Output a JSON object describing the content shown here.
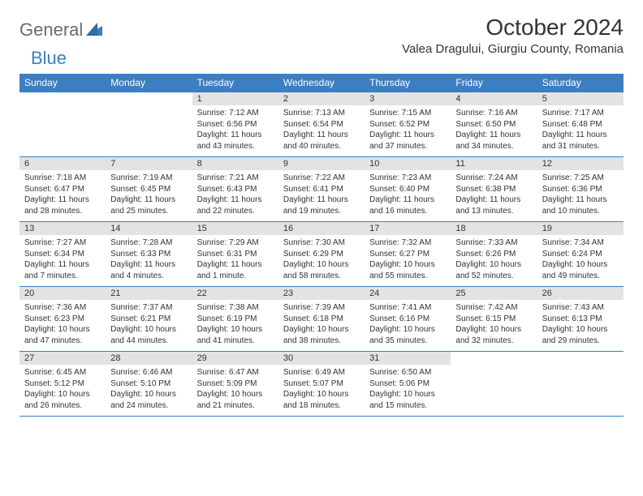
{
  "brand": {
    "part1": "General",
    "part2": "Blue"
  },
  "title": "October 2024",
  "location": "Valea Dragului, Giurgiu County, Romania",
  "colors": {
    "headerBlue": "#3b7ec1",
    "dayBarGrey": "#e3e3e3",
    "textDark": "#333333",
    "textGrey": "#6b6b6b",
    "white": "#ffffff"
  },
  "dayNames": [
    "Sunday",
    "Monday",
    "Tuesday",
    "Wednesday",
    "Thursday",
    "Friday",
    "Saturday"
  ],
  "weeks": [
    [
      null,
      null,
      {
        "n": "1",
        "sr": "7:12 AM",
        "ss": "6:56 PM",
        "dl": "11 hours and 43 minutes."
      },
      {
        "n": "2",
        "sr": "7:13 AM",
        "ss": "6:54 PM",
        "dl": "11 hours and 40 minutes."
      },
      {
        "n": "3",
        "sr": "7:15 AM",
        "ss": "6:52 PM",
        "dl": "11 hours and 37 minutes."
      },
      {
        "n": "4",
        "sr": "7:16 AM",
        "ss": "6:50 PM",
        "dl": "11 hours and 34 minutes."
      },
      {
        "n": "5",
        "sr": "7:17 AM",
        "ss": "6:48 PM",
        "dl": "11 hours and 31 minutes."
      }
    ],
    [
      {
        "n": "6",
        "sr": "7:18 AM",
        "ss": "6:47 PM",
        "dl": "11 hours and 28 minutes."
      },
      {
        "n": "7",
        "sr": "7:19 AM",
        "ss": "6:45 PM",
        "dl": "11 hours and 25 minutes."
      },
      {
        "n": "8",
        "sr": "7:21 AM",
        "ss": "6:43 PM",
        "dl": "11 hours and 22 minutes."
      },
      {
        "n": "9",
        "sr": "7:22 AM",
        "ss": "6:41 PM",
        "dl": "11 hours and 19 minutes."
      },
      {
        "n": "10",
        "sr": "7:23 AM",
        "ss": "6:40 PM",
        "dl": "11 hours and 16 minutes."
      },
      {
        "n": "11",
        "sr": "7:24 AM",
        "ss": "6:38 PM",
        "dl": "11 hours and 13 minutes."
      },
      {
        "n": "12",
        "sr": "7:25 AM",
        "ss": "6:36 PM",
        "dl": "11 hours and 10 minutes."
      }
    ],
    [
      {
        "n": "13",
        "sr": "7:27 AM",
        "ss": "6:34 PM",
        "dl": "11 hours and 7 minutes."
      },
      {
        "n": "14",
        "sr": "7:28 AM",
        "ss": "6:33 PM",
        "dl": "11 hours and 4 minutes."
      },
      {
        "n": "15",
        "sr": "7:29 AM",
        "ss": "6:31 PM",
        "dl": "11 hours and 1 minute."
      },
      {
        "n": "16",
        "sr": "7:30 AM",
        "ss": "6:29 PM",
        "dl": "10 hours and 58 minutes."
      },
      {
        "n": "17",
        "sr": "7:32 AM",
        "ss": "6:27 PM",
        "dl": "10 hours and 55 minutes."
      },
      {
        "n": "18",
        "sr": "7:33 AM",
        "ss": "6:26 PM",
        "dl": "10 hours and 52 minutes."
      },
      {
        "n": "19",
        "sr": "7:34 AM",
        "ss": "6:24 PM",
        "dl": "10 hours and 49 minutes."
      }
    ],
    [
      {
        "n": "20",
        "sr": "7:36 AM",
        "ss": "6:23 PM",
        "dl": "10 hours and 47 minutes."
      },
      {
        "n": "21",
        "sr": "7:37 AM",
        "ss": "6:21 PM",
        "dl": "10 hours and 44 minutes."
      },
      {
        "n": "22",
        "sr": "7:38 AM",
        "ss": "6:19 PM",
        "dl": "10 hours and 41 minutes."
      },
      {
        "n": "23",
        "sr": "7:39 AM",
        "ss": "6:18 PM",
        "dl": "10 hours and 38 minutes."
      },
      {
        "n": "24",
        "sr": "7:41 AM",
        "ss": "6:16 PM",
        "dl": "10 hours and 35 minutes."
      },
      {
        "n": "25",
        "sr": "7:42 AM",
        "ss": "6:15 PM",
        "dl": "10 hours and 32 minutes."
      },
      {
        "n": "26",
        "sr": "7:43 AM",
        "ss": "6:13 PM",
        "dl": "10 hours and 29 minutes."
      }
    ],
    [
      {
        "n": "27",
        "sr": "6:45 AM",
        "ss": "5:12 PM",
        "dl": "10 hours and 26 minutes."
      },
      {
        "n": "28",
        "sr": "6:46 AM",
        "ss": "5:10 PM",
        "dl": "10 hours and 24 minutes."
      },
      {
        "n": "29",
        "sr": "6:47 AM",
        "ss": "5:09 PM",
        "dl": "10 hours and 21 minutes."
      },
      {
        "n": "30",
        "sr": "6:49 AM",
        "ss": "5:07 PM",
        "dl": "10 hours and 18 minutes."
      },
      {
        "n": "31",
        "sr": "6:50 AM",
        "ss": "5:06 PM",
        "dl": "10 hours and 15 minutes."
      },
      null,
      null
    ]
  ],
  "labels": {
    "sunrise": "Sunrise: ",
    "sunset": "Sunset: ",
    "daylight": "Daylight: "
  }
}
